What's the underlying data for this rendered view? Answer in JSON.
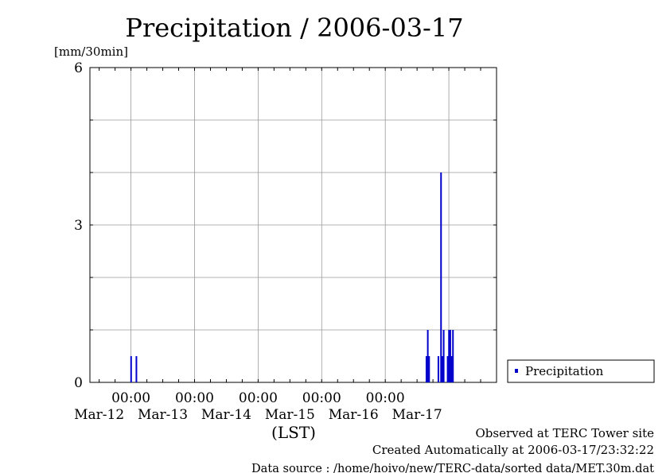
{
  "chart_data": {
    "type": "bar",
    "title": "Precipitation / 2006-03-17",
    "ylabel": "[mm/30min]",
    "xlabel": "(LST)",
    "ylim": [
      0,
      6
    ],
    "xlim": [
      "2006-03-11 08:30",
      "2006-03-17 18:00"
    ],
    "y_ticks": [
      "0",
      "3",
      "6"
    ],
    "x_ticks": [
      {
        "time": "2006-03-12 00:00",
        "label_time": "00:00",
        "label_date": "Mar-12"
      },
      {
        "time": "2006-03-13 00:00",
        "label_time": "00:00",
        "label_date": "Mar-13"
      },
      {
        "time": "2006-03-14 00:00",
        "label_time": "00:00",
        "label_date": "Mar-14"
      },
      {
        "time": "2006-03-15 00:00",
        "label_time": "00:00",
        "label_date": "Mar-15"
      },
      {
        "time": "2006-03-16 00:00",
        "label_time": "00:00",
        "label_date": "Mar-16"
      },
      {
        "time": "2006-03-17 00:00",
        "label_time": "",
        "label_date": "Mar-17"
      }
    ],
    "grid": true,
    "legend_position": "right-bottom, outside plot",
    "series": [
      {
        "name": "Precipitation",
        "color": "#0000cc",
        "points": [
          {
            "time": "2006-03-12 00:00",
            "value": 0.5
          },
          {
            "time": "2006-03-12 02:00",
            "value": 0.5
          },
          {
            "time": "2006-03-16 15:30",
            "value": 0.5
          },
          {
            "time": "2006-03-16 16:00",
            "value": 1.0
          },
          {
            "time": "2006-03-16 16:30",
            "value": 0.5
          },
          {
            "time": "2006-03-16 20:00",
            "value": 0.5
          },
          {
            "time": "2006-03-16 21:00",
            "value": 4.0
          },
          {
            "time": "2006-03-16 21:30",
            "value": 0.5
          },
          {
            "time": "2006-03-16 22:00",
            "value": 1.0
          },
          {
            "time": "2006-03-16 23:30",
            "value": 0.5
          },
          {
            "time": "2006-03-17 00:00",
            "value": 1.0
          },
          {
            "time": "2006-03-17 00:30",
            "value": 1.0
          },
          {
            "time": "2006-03-17 01:00",
            "value": 0.5
          },
          {
            "time": "2006-03-17 01:30",
            "value": 1.0
          }
        ]
      }
    ]
  },
  "footer": {
    "observed": "Observed at TERC Tower site",
    "created": "Created Automatically at 2006-03-17/23:32:22",
    "source": "Data source : /home/hoivo/new/TERC-data/sorted  data/MET.30m.dat"
  }
}
